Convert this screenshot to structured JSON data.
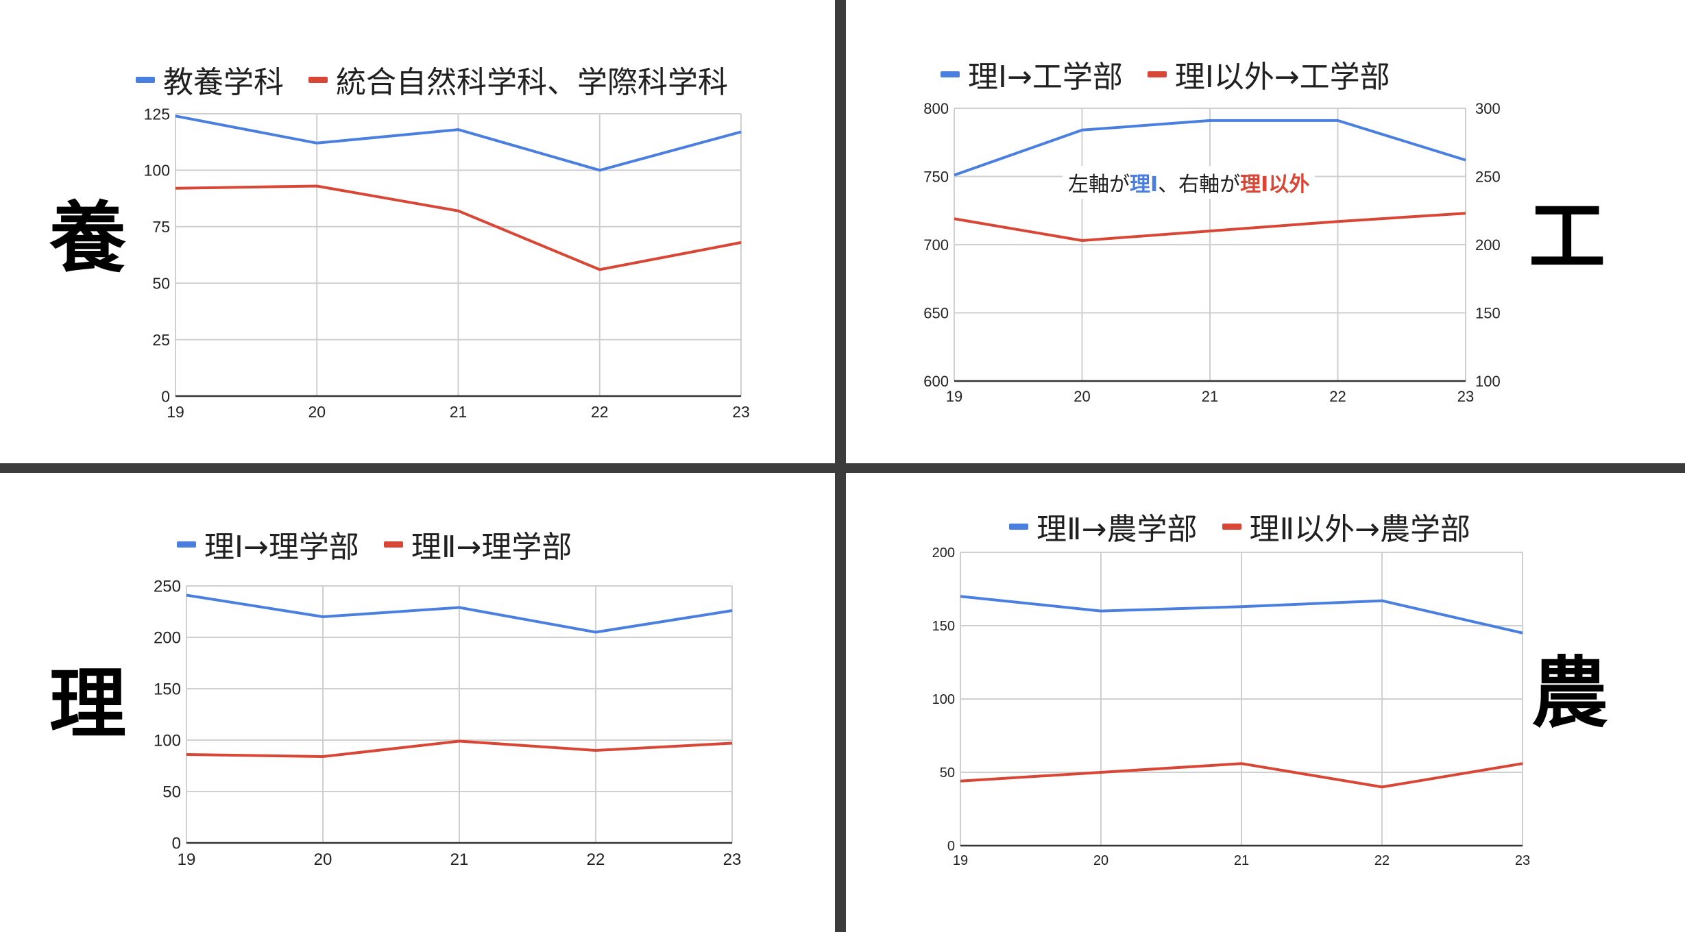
{
  "panels": {
    "kyoyo": {
      "glyph": "養",
      "legend": [
        "教養学科",
        "統合自然科学科、学際科学科"
      ]
    },
    "kou": {
      "glyph": "工",
      "legend": [
        "理Ⅰ→工学部",
        "理Ⅰ以外→工学部"
      ],
      "note": {
        "part1": "左軸が",
        "part2": "理Ⅰ",
        "part3": "、右軸が",
        "part4": "理Ⅰ以外"
      }
    },
    "ri": {
      "glyph": "理",
      "legend": [
        "理Ⅰ→理学部",
        "理Ⅱ→理学部"
      ]
    },
    "nou": {
      "glyph": "農",
      "legend": [
        "理Ⅱ→農学部",
        "理Ⅱ以外→農学部"
      ]
    }
  },
  "colors": {
    "blue": "#4a7fe0",
    "red": "#d84636",
    "grid": "#cfcfcf",
    "axis": "#333333",
    "divider": "#3c3c3c"
  },
  "chart_data": [
    {
      "id": "kyoyo",
      "type": "line",
      "x": [
        "19",
        "20",
        "21",
        "22",
        "23"
      ],
      "series": [
        {
          "name": "教養学科",
          "values": [
            124,
            112,
            118,
            100,
            117
          ],
          "color": "#4a7fe0"
        },
        {
          "name": "統合自然科学科、学際科学科",
          "values": [
            92,
            93,
            82,
            56,
            68
          ],
          "color": "#d84636"
        }
      ],
      "ylim": [
        0,
        125
      ],
      "yticks": [
        "0",
        "25",
        "50",
        "75",
        "100",
        "125"
      ],
      "grid": true,
      "legend": "top"
    },
    {
      "id": "kou",
      "type": "line",
      "x": [
        "19",
        "20",
        "21",
        "22",
        "23"
      ],
      "series": [
        {
          "name": "理Ⅰ→工学部",
          "values": [
            751,
            784,
            791,
            791,
            762
          ],
          "color": "#4a7fe0",
          "axis": "left"
        },
        {
          "name": "理Ⅰ以外→工学部",
          "values": [
            219,
            203,
            210,
            217,
            223
          ],
          "color": "#d84636",
          "axis": "right"
        }
      ],
      "ylim": [
        600,
        800
      ],
      "yticks": [
        "600",
        "650",
        "700",
        "750",
        "800"
      ],
      "ylim_right": [
        100,
        300
      ],
      "yticks_right": [
        "100",
        "150",
        "200",
        "250",
        "300"
      ],
      "grid": true,
      "legend": "top"
    },
    {
      "id": "ri",
      "type": "line",
      "x": [
        "19",
        "20",
        "21",
        "22",
        "23"
      ],
      "series": [
        {
          "name": "理Ⅰ→理学部",
          "values": [
            241,
            220,
            229,
            205,
            226
          ],
          "color": "#4a7fe0"
        },
        {
          "name": "理Ⅱ→理学部",
          "values": [
            86,
            84,
            99,
            90,
            97
          ],
          "color": "#d84636"
        }
      ],
      "ylim": [
        0,
        250
      ],
      "yticks": [
        "0",
        "50",
        "100",
        "150",
        "200",
        "250"
      ],
      "grid": true,
      "legend": "top"
    },
    {
      "id": "nou",
      "type": "line",
      "x": [
        "19",
        "20",
        "21",
        "22",
        "23"
      ],
      "series": [
        {
          "name": "理Ⅱ→農学部",
          "values": [
            170,
            160,
            163,
            167,
            145
          ],
          "color": "#4a7fe0"
        },
        {
          "name": "理Ⅱ以外→農学部",
          "values": [
            44,
            50,
            56,
            40,
            56
          ],
          "color": "#d84636"
        }
      ],
      "ylim": [
        0,
        200
      ],
      "yticks": [
        "0",
        "50",
        "100",
        "150",
        "200"
      ],
      "grid": true,
      "legend": "top"
    }
  ]
}
